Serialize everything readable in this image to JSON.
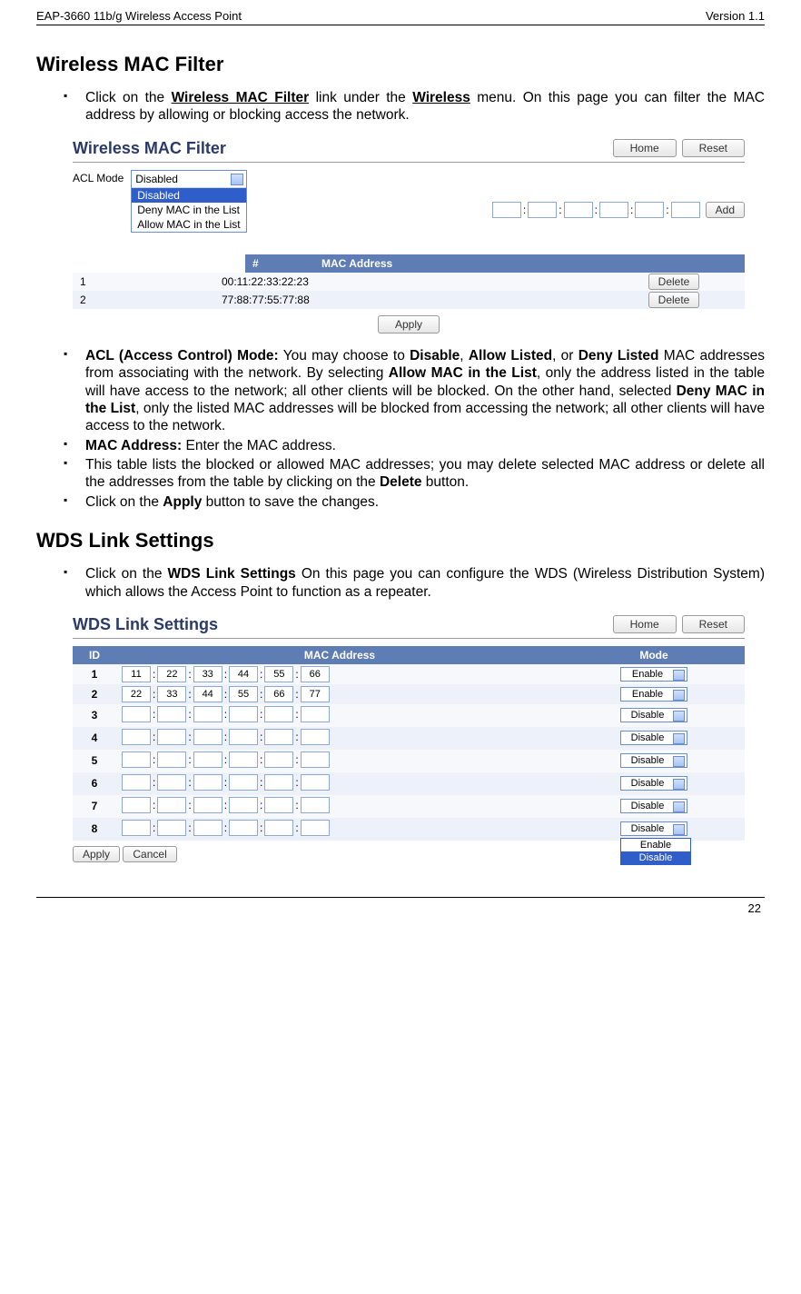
{
  "header": {
    "left": "EAP-3660  11b/g Wireless Access Point",
    "right": "Version 1.1"
  },
  "section1": {
    "title": "Wireless MAC Filter",
    "bullet1_a": "Click on the ",
    "bullet1_b": "Wireless MAC Filter",
    "bullet1_c": " link under the ",
    "bullet1_d": "Wireless",
    "bullet1_e": " menu. On this page you can filter the MAC address by allowing or blocking access the network.",
    "panel": {
      "title": "Wireless MAC Filter",
      "home": "Home",
      "reset": "Reset",
      "acl_label": "ACL Mode",
      "acl_selected": "Disabled",
      "acl_options": [
        "Disabled",
        "Deny MAC in the List",
        "Allow MAC in the List"
      ],
      "add": "Add",
      "th_num": "#",
      "th_mac": "MAC Address",
      "rows": [
        {
          "n": "1",
          "mac": "00:11:22:33:22:23"
        },
        {
          "n": "2",
          "mac": "77:88:77:55:77:88"
        }
      ],
      "delete": "Delete",
      "apply": "Apply"
    },
    "b2_a": "ACL (Access Control) Mode:",
    "b2_b": " You may choose to ",
    "b2_c": "Disable",
    "b2_d": ", ",
    "b2_e": "Allow Listed",
    "b2_f": ", or ",
    "b2_g": "Deny Listed",
    "b2_h": " MAC addresses from associating with the network. By selecting ",
    "b2_i": "Allow MAC in the List",
    "b2_j": ", only the address listed in the table will have access to the network; all other clients will be blocked. On the other hand, selected ",
    "b2_k": "Deny MAC in the List",
    "b2_l": ", only the listed MAC addresses will be blocked from accessing the network; all other clients will have access to the network.",
    "b3_a": "MAC Address:",
    "b3_b": " Enter the MAC address.",
    "b4_a": "This table lists the blocked or allowed MAC addresses; you may delete selected MAC address or delete all the addresses from the table by clicking on the ",
    "b4_b": "Delete",
    "b4_c": " button.",
    "b5_a": "Click on the ",
    "b5_b": "Apply",
    "b5_c": " button to save the changes."
  },
  "section2": {
    "title": "WDS Link Settings",
    "bullet_a": "Click on the ",
    "bullet_b": "WDS Link Settings",
    "bullet_c": "  On this page you can configure the WDS (Wireless Distribution System) which allows the Access Point to function as a repeater.",
    "panel": {
      "title": "WDS Link Settings",
      "home": "Home",
      "reset": "Reset",
      "th_id": "ID",
      "th_mac": "MAC Address",
      "th_mode": "Mode",
      "rows": [
        {
          "id": "1",
          "mac": [
            "11",
            "22",
            "33",
            "44",
            "55",
            "66"
          ],
          "mode": "Enable"
        },
        {
          "id": "2",
          "mac": [
            "22",
            "33",
            "44",
            "55",
            "66",
            "77"
          ],
          "mode": "Enable"
        },
        {
          "id": "3",
          "mac": [
            "",
            "",
            "",
            "",
            "",
            ""
          ],
          "mode": "Disable"
        },
        {
          "id": "4",
          "mac": [
            "",
            "",
            "",
            "",
            "",
            ""
          ],
          "mode": "Disable"
        },
        {
          "id": "5",
          "mac": [
            "",
            "",
            "",
            "",
            "",
            ""
          ],
          "mode": "Disable"
        },
        {
          "id": "6",
          "mac": [
            "",
            "",
            "",
            "",
            "",
            ""
          ],
          "mode": "Disable"
        },
        {
          "id": "7",
          "mac": [
            "",
            "",
            "",
            "",
            "",
            ""
          ],
          "mode": "Disable"
        },
        {
          "id": "8",
          "mac": [
            "",
            "",
            "",
            "",
            "",
            ""
          ],
          "mode": "Disable",
          "expanded": true
        }
      ],
      "dd_options": [
        "Enable",
        "Disable"
      ],
      "apply": "Apply",
      "cancel": "Cancel"
    }
  },
  "page_number": "22",
  "colors": {
    "header_bar": "#5f7db5",
    "row_a": "#f6f8fc",
    "row_b": "#edf1f9",
    "title_color": "#2a3a6a",
    "highlight": "#2f5ecb"
  }
}
